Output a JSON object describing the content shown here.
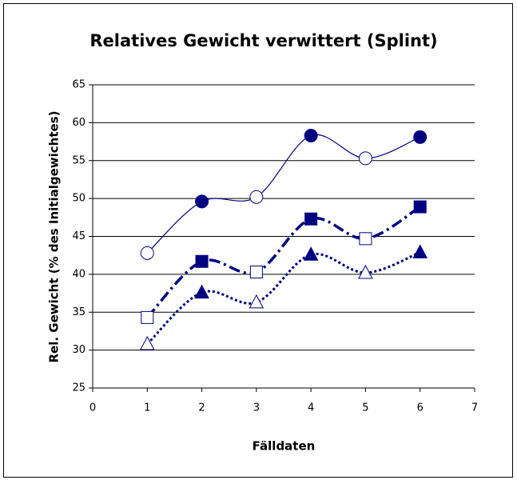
{
  "chart_data": {
    "type": "line",
    "title": "Relatives Gewicht verwittert (Splint)",
    "xlabel": "Fälldaten",
    "ylabel": "Rel. Gewicht (% des Initialgewichtes)",
    "x": [
      1,
      2,
      3,
      4,
      5,
      6
    ],
    "xlim": [
      0,
      7
    ],
    "xticks": [
      0,
      1,
      2,
      3,
      4,
      5,
      6,
      7
    ],
    "ylim": [
      25,
      65
    ],
    "yticks": [
      25,
      30,
      35,
      40,
      45,
      50,
      55,
      60,
      65
    ],
    "grid": true,
    "smooth": true,
    "series": [
      {
        "color": "#000080",
        "marker": "circle",
        "line": "solid",
        "filled": [
          false,
          true,
          false,
          true,
          false,
          true
        ],
        "values": [
          42.8,
          49.6,
          50.2,
          58.3,
          55.3,
          58.1
        ]
      },
      {
        "color": "#000080",
        "marker": "square",
        "line": "dashdot",
        "filled": [
          false,
          true,
          false,
          true,
          false,
          true
        ],
        "values": [
          34.3,
          41.7,
          40.3,
          47.3,
          44.7,
          48.9
        ]
      },
      {
        "color": "#000080",
        "marker": "triangle",
        "line": "dotted",
        "filled": [
          false,
          true,
          false,
          true,
          false,
          true
        ],
        "values": [
          30.8,
          37.6,
          36.3,
          42.6,
          40.2,
          42.9
        ]
      }
    ]
  }
}
